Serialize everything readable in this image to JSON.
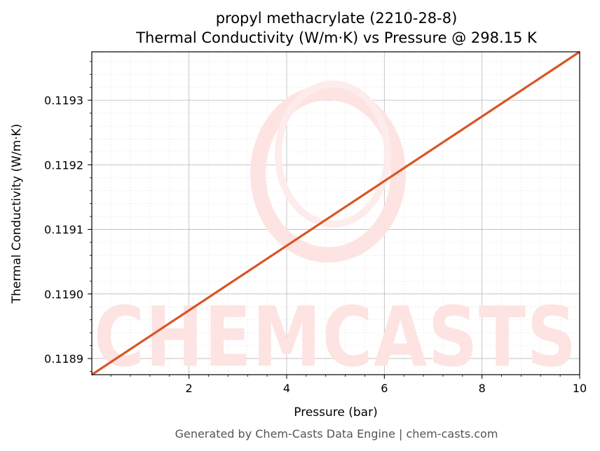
{
  "chart_data": {
    "type": "line",
    "title": "propyl methacrylate (2210-28-8)",
    "subtitle": "Thermal Conductivity (W/m·K) vs Pressure @ 298.15 K",
    "xlabel": "Pressure (bar)",
    "ylabel": "Thermal Conductivity (W/m·K)",
    "xlim": [
      0.01,
      10
    ],
    "ylim": [
      0.118875,
      0.119375
    ],
    "xticks": [
      2,
      4,
      6,
      8,
      10
    ],
    "xtick_labels": [
      "2",
      "4",
      "6",
      "8",
      "10"
    ],
    "yticks": [
      0.1189,
      0.119,
      0.1191,
      0.1192,
      0.1193
    ],
    "ytick_labels": [
      "0.1189",
      "0.1190",
      "0.1191",
      "0.1192",
      "0.1193"
    ],
    "grid": true,
    "series": [
      {
        "color": "#d95525",
        "x": [
          0.01,
          10
        ],
        "y": [
          0.118875,
          0.119375
        ]
      }
    ]
  },
  "watermark": {
    "text": "CHEMCASTS"
  },
  "footer": {
    "text": "Generated by Chem-Casts Data Engine | chem-casts.com"
  }
}
